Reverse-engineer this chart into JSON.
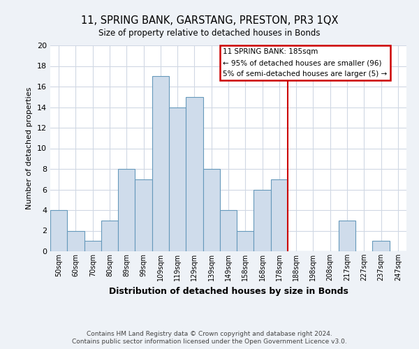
{
  "title": "11, SPRING BANK, GARSTANG, PRESTON, PR3 1QX",
  "subtitle": "Size of property relative to detached houses in Bonds",
  "xlabel": "Distribution of detached houses by size in Bonds",
  "ylabel": "Number of detached properties",
  "footnote1": "Contains HM Land Registry data © Crown copyright and database right 2024.",
  "footnote2": "Contains public sector information licensed under the Open Government Licence v3.0.",
  "bin_labels": [
    "50sqm",
    "60sqm",
    "70sqm",
    "80sqm",
    "89sqm",
    "99sqm",
    "109sqm",
    "119sqm",
    "129sqm",
    "139sqm",
    "149sqm",
    "158sqm",
    "168sqm",
    "178sqm",
    "188sqm",
    "198sqm",
    "208sqm",
    "217sqm",
    "227sqm",
    "237sqm",
    "247sqm"
  ],
  "bar_heights": [
    4,
    2,
    1,
    3,
    8,
    7,
    17,
    14,
    15,
    8,
    4,
    2,
    6,
    7,
    0,
    0,
    0,
    3,
    0,
    1,
    0
  ],
  "bar_color": "#cfdceb",
  "bar_edge_color": "#6699bb",
  "vline_color": "#cc0000",
  "vline_x_index": 13,
  "annotation_title": "11 SPRING BANK: 185sqm",
  "annotation_line1": "← 95% of detached houses are smaller (96)",
  "annotation_line2": "5% of semi-detached houses are larger (5) →",
  "ylim": [
    0,
    20
  ],
  "yticks": [
    0,
    2,
    4,
    6,
    8,
    10,
    12,
    14,
    16,
    18,
    20
  ],
  "background_color": "#eef2f7",
  "plot_bg_color": "#ffffff",
  "grid_color": "#d0d8e4"
}
